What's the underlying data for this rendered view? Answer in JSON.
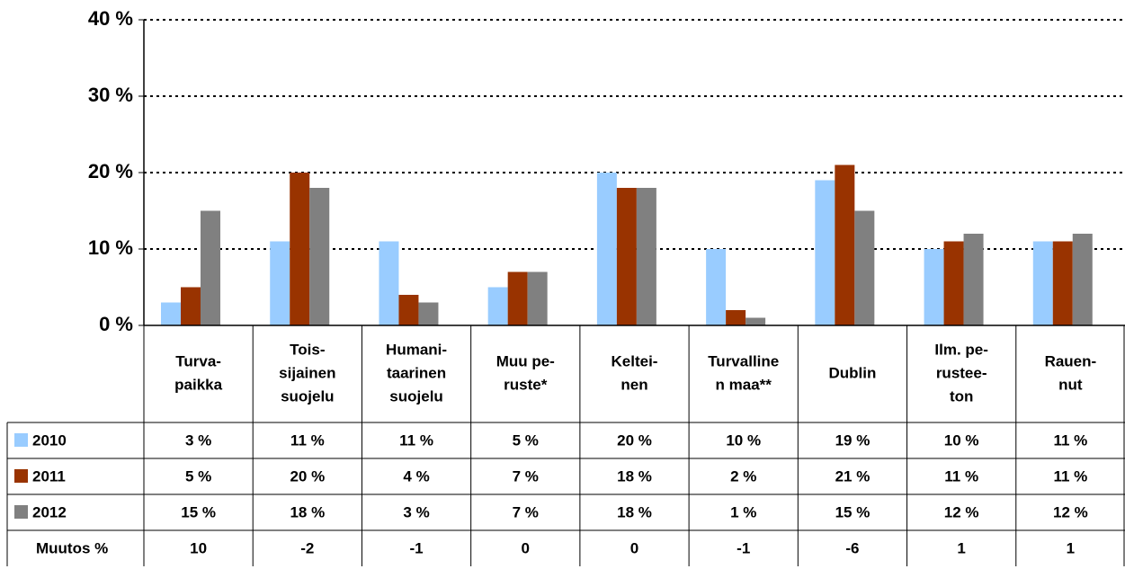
{
  "chart_data": {
    "type": "bar",
    "categories": [
      [
        "Turva-",
        "paikka"
      ],
      [
        "Tois-",
        "sijainen",
        "suojelu"
      ],
      [
        "Humani-",
        "taarinen",
        "suojelu"
      ],
      [
        "Muu pe-",
        "ruste*"
      ],
      [
        "Keltei-",
        "nen"
      ],
      [
        "Turvalline",
        "n maa**"
      ],
      [
        "Dublin"
      ],
      [
        "Ilm. pe-",
        "rustee-",
        "ton"
      ],
      [
        "Rauen-",
        "nut"
      ]
    ],
    "series": [
      {
        "name": "2010",
        "color": "#99ccff",
        "values": [
          3,
          11,
          11,
          5,
          20,
          10,
          19,
          10,
          11
        ],
        "value_labels": [
          "3 %",
          "11 %",
          "11 %",
          "5 %",
          "20 %",
          "10 %",
          "19 %",
          "10 %",
          "11 %"
        ]
      },
      {
        "name": "2011",
        "color": "#993300",
        "values": [
          5,
          20,
          4,
          7,
          18,
          2,
          21,
          11,
          11
        ],
        "value_labels": [
          "5 %",
          "20 %",
          "4 %",
          "7 %",
          "18 %",
          "2 %",
          "21 %",
          "11 %",
          "11 %"
        ]
      },
      {
        "name": "2012",
        "color": "#808080",
        "values": [
          15,
          18,
          3,
          7,
          18,
          1,
          15,
          12,
          12
        ],
        "value_labels": [
          "15 %",
          "18 %",
          "3 %",
          "7 %",
          "18 %",
          "1 %",
          "15 %",
          "12 %",
          "12 %"
        ]
      }
    ],
    "change": {
      "name": "Muutos %",
      "values": [
        10,
        -2,
        -1,
        0,
        0,
        -1,
        -6,
        1,
        1
      ]
    },
    "ylim": [
      0,
      40
    ],
    "yticks": [
      {
        "value": 0,
        "label": "0 %"
      },
      {
        "value": 10,
        "label": "10 %"
      },
      {
        "value": 20,
        "label": "20 %"
      },
      {
        "value": 30,
        "label": "30 %"
      },
      {
        "value": 40,
        "label": "40 %"
      }
    ],
    "grid": true
  }
}
